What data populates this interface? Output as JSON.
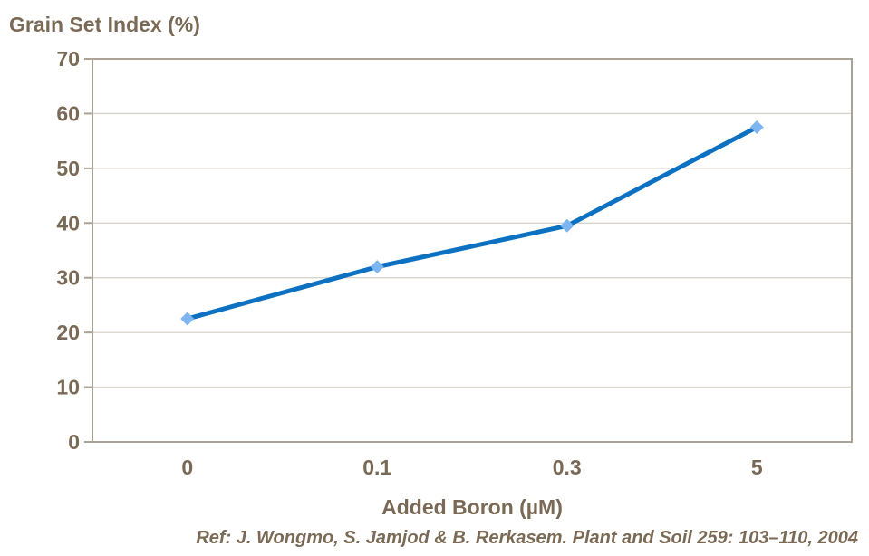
{
  "chart_data": {
    "type": "line",
    "title": "Grain Set Index (%)",
    "xlabel": "Added Boron (µM)",
    "ylabel": "Grain Set Index (%)",
    "categories": [
      "0",
      "0.1",
      "0.3",
      "5"
    ],
    "series": [
      {
        "name": "Grain Set Index (%)",
        "values": [
          22.5,
          32,
          39.5,
          57.5
        ]
      }
    ],
    "ylim": [
      0,
      70
    ],
    "yticks": [
      0,
      10,
      20,
      30,
      40,
      50,
      60,
      70
    ],
    "grid": true,
    "legend": "none",
    "marker": "diamond",
    "colors": {
      "line": "#0d71c2",
      "marker": "#7cb5f1",
      "axis": "#aba296",
      "gridline": "#d9d4ca",
      "text": "#7a6a55"
    }
  },
  "footer": {
    "reference": "Ref: J. Wongmo, S. Jamjod & B. Rerkasem. Plant and Soil 259: 103–110, 2004"
  }
}
